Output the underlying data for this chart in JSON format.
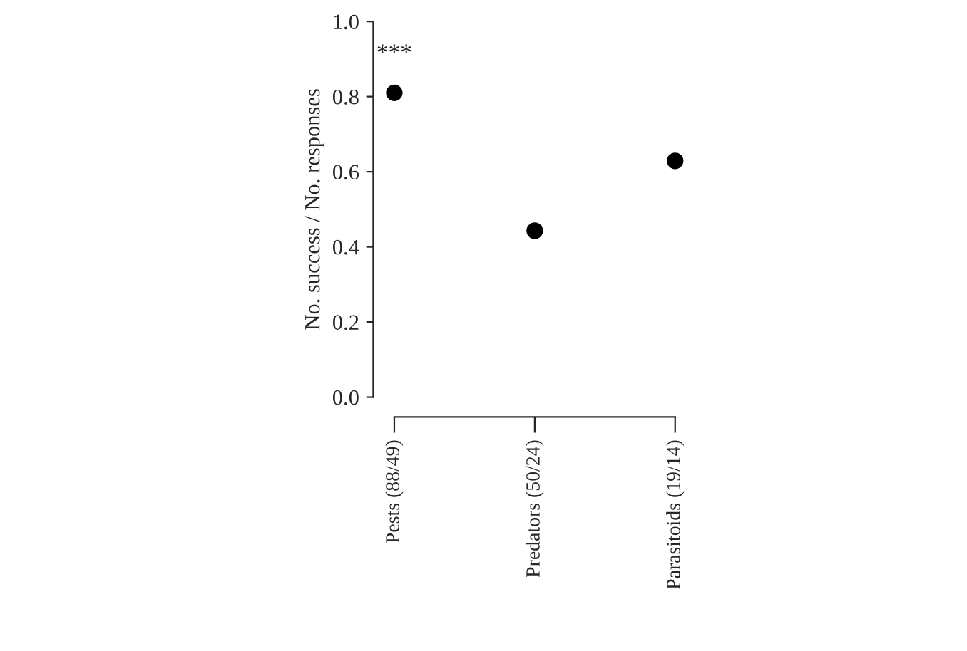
{
  "chart_data": {
    "type": "scatter",
    "ylabel": "No. success / No. responses",
    "categories": [
      "Pests (88/49)",
      "Predators (50/24)",
      "Parasitoids (19/14)"
    ],
    "series": [
      {
        "color": "#000000",
        "values": [
          0.81,
          0.443,
          0.629
        ]
      }
    ],
    "ylim": [
      0,
      1
    ],
    "yticks": [
      {
        "value": 0,
        "label": "0.0"
      },
      {
        "value": 0.2,
        "label": "0.2"
      },
      {
        "value": 0.4,
        "label": "0.4"
      },
      {
        "value": 0.6,
        "label": "0.6"
      },
      {
        "value": 0.8,
        "label": "0.8"
      },
      {
        "value": 1,
        "label": "1.0"
      }
    ],
    "annotations": [
      "***"
    ],
    "marker": "circle",
    "grid": false,
    "legend": false
  }
}
